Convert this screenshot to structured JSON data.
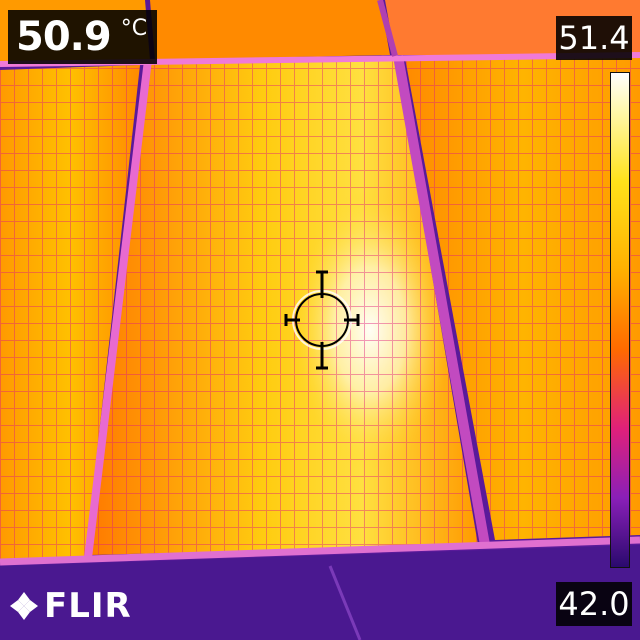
{
  "spot": {
    "value": "50.9",
    "unit": "°C"
  },
  "scale": {
    "max": "51.4",
    "min": "42.0"
  },
  "brand": {
    "name": "FLIR"
  },
  "icons": {
    "crosshair": "crosshair-icon",
    "logo": "flir-logo-icon"
  },
  "palette": {
    "hot": "#ffffff",
    "warm": "#ffd21a",
    "mid": "#ff8a00",
    "cool": "#c2187e",
    "cold": "#2a0a6e"
  }
}
